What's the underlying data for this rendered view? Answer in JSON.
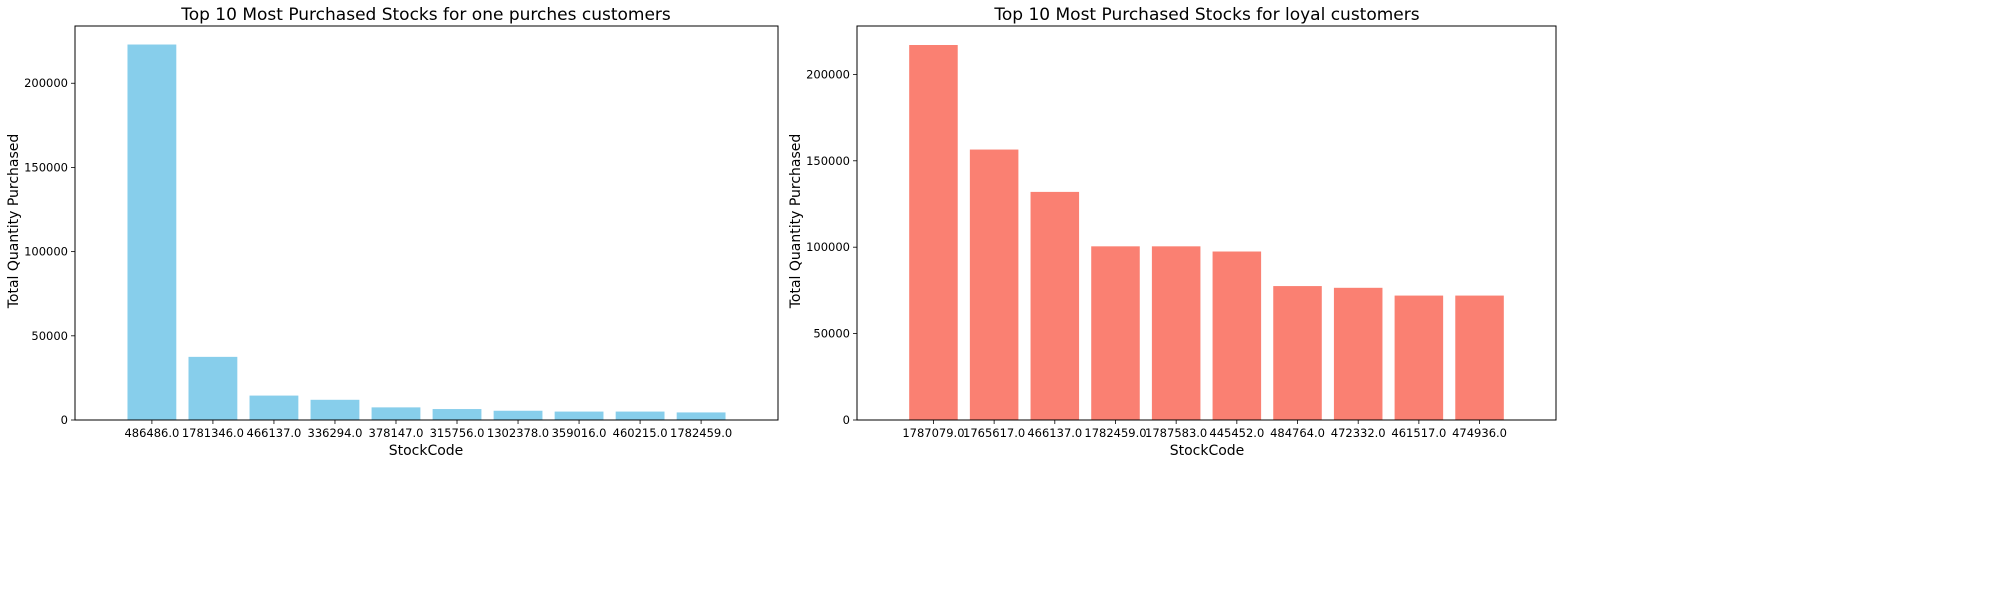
{
  "chart_data": [
    {
      "type": "bar",
      "title": "Top 10 Most Purchased Stocks for one purches customers",
      "xlabel": "StockCode",
      "ylabel": "Total Quantity Purchased",
      "categories": [
        "486486.0",
        "1781346.0",
        "466137.0",
        "336294.0",
        "378147.0",
        "315756.0",
        "1302378.0",
        "359016.0",
        "460215.0",
        "1782459.0"
      ],
      "values": [
        223000,
        37500,
        14500,
        12000,
        7500,
        6500,
        5500,
        5000,
        5000,
        4500
      ],
      "ylim": [
        0,
        234000
      ],
      "yticks": [
        0,
        50000,
        100000,
        150000,
        200000
      ],
      "ytick_labels": [
        "0",
        "50000",
        "100000",
        "150000",
        "200000"
      ],
      "color": "#87CEEB",
      "grid": false,
      "legend": "none"
    },
    {
      "type": "bar",
      "title": "Top 10 Most Purchased Stocks for loyal customers",
      "xlabel": "StockCode",
      "ylabel": "Total Quantity Purchased",
      "categories": [
        "1787079.0",
        "1765617.0",
        "466137.0",
        "1782459.0",
        "1787583.0",
        "445452.0",
        "484764.0",
        "472332.0",
        "461517.0",
        "474936.0"
      ],
      "values": [
        217000,
        156500,
        132000,
        100500,
        100500,
        97500,
        77500,
        76500,
        72000,
        72000
      ],
      "ylim": [
        0,
        228000
      ],
      "yticks": [
        0,
        50000,
        100000,
        150000,
        200000
      ],
      "ytick_labels": [
        "0",
        "50000",
        "100000",
        "150000",
        "200000"
      ],
      "color": "#FA8072",
      "grid": false,
      "legend": "none"
    }
  ]
}
